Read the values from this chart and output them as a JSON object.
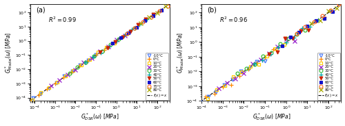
{
  "panel_labels": [
    "(a)",
    "(b)"
  ],
  "r2_values": [
    "$R^2 = 0.99$",
    "$R^2 = 0.96$"
  ],
  "xlabel": "$G^*_{DSR}(\\omega)\\ [MPa]$",
  "ylabel_a": "$G^*_{Model}(\\omega)\\ [MPa]$",
  "ylabel_b": "$G^*_{Model}(\\omega)\\ [MPa]$",
  "xlim_a": [
    6e-05,
    400.0
  ],
  "ylim_a": [
    6e-05,
    400.0
  ],
  "xlim_b": [
    0.0001,
    400.0
  ],
  "ylim_b": [
    0.0001,
    400.0
  ],
  "temps": [
    "-10°C",
    "0°C",
    "10°C",
    "20°C",
    "30°C",
    "40°C",
    "50°C",
    "60°C",
    "70°C",
    "80°C"
  ],
  "temp_markers": [
    "v",
    "+",
    "s",
    "x",
    "o",
    "+",
    "v",
    "s",
    "o",
    "x"
  ],
  "temp_colors": [
    "#4477ff",
    "#ff8800",
    "#ffcc00",
    "#9922cc",
    "#33bb33",
    "#00aaaa",
    "#cc2200",
    "#1111cc",
    "#ff6622",
    "#aaaa00"
  ],
  "temp_mfc": [
    "none",
    "#ff8800",
    "none",
    "#9922cc",
    "none",
    "#00aaaa",
    "#cc2200",
    "#1111cc",
    "none",
    "#aaaa00"
  ],
  "noise_a": 0.045,
  "noise_b": 0.12,
  "log_centers": [
    -3.5,
    -2.8,
    -2.1,
    -1.4,
    -0.7,
    0.0,
    0.5,
    1.0,
    1.5,
    2.0
  ],
  "half_spans": [
    2.5,
    2.2,
    2.0,
    1.8,
    1.6,
    1.5,
    1.3,
    1.2,
    1.0,
    0.8
  ],
  "n_pts": [
    14,
    12,
    11,
    10,
    9,
    9,
    8,
    7,
    6,
    5
  ]
}
